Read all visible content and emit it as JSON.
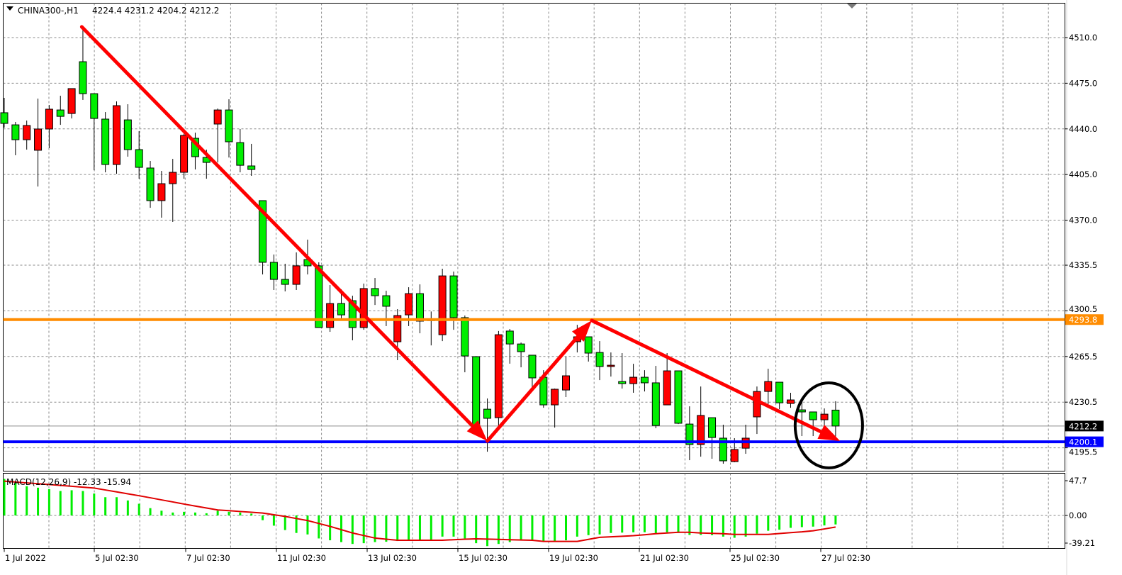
{
  "header": {
    "menu_icon": "triangle-down-icon",
    "symbol": "CHINA300-,H1",
    "ohlc": "4224.4 4231.2 4204.2 4212.2"
  },
  "chart_data": {
    "type": "candlestick",
    "symbol": "CHINA300-",
    "timeframe": "H1",
    "ylim": [
      4183,
      4529
    ],
    "grid": true,
    "y_ticks": [
      "4510.0",
      "4475.0",
      "4440.0",
      "4405.0",
      "4370.0",
      "4335.5",
      "4300.5",
      "4265.5",
      "4230.5",
      "4195.5"
    ],
    "x_ticks": [
      "1 Jul 2022",
      "5 Jul 02:30",
      "7 Jul 02:30",
      "11 Jul 02:30",
      "13 Jul 02:30",
      "15 Jul 02:30",
      "19 Jul 02:30",
      "21 Jul 02:30",
      "25 Jul 02:30",
      "27 Jul 02:30"
    ],
    "colors": {
      "bull": "#ff0000",
      "bear": "#00ee00",
      "outline": "#000000"
    },
    "candles_ohlc": [
      [
        4452.4,
        4463.8,
        4441.0,
        4444.2
      ],
      [
        4443.1,
        4445.3,
        4419.8,
        4431.7
      ],
      [
        4431.7,
        4446.4,
        4424.1,
        4442.6
      ],
      [
        4423.6,
        4463.2,
        4395.8,
        4439.9
      ],
      [
        4439.9,
        4458.3,
        4425.2,
        4455.1
      ],
      [
        4454.5,
        4465.4,
        4443.1,
        4449.6
      ],
      [
        4451.8,
        4470.9,
        4448.0,
        4470.9
      ],
      [
        4491.5,
        4518.7,
        4462.2,
        4467.0
      ],
      [
        4467.0,
        4467.0,
        4408.3,
        4448.0
      ],
      [
        4447.5,
        4452.9,
        4406.7,
        4412.7
      ],
      [
        4412.7,
        4461.1,
        4405.6,
        4457.8
      ],
      [
        4446.9,
        4458.9,
        4418.7,
        4424.1
      ],
      [
        4424.1,
        4438.2,
        4401.8,
        4410.5
      ],
      [
        4410.0,
        4415.4,
        4379.5,
        4385.0
      ],
      [
        4385.0,
        4407.8,
        4371.9,
        4398.0
      ],
      [
        4398.0,
        4417.0,
        4368.7,
        4406.7
      ],
      [
        4406.7,
        4437.1,
        4401.8,
        4435.0
      ],
      [
        4432.8,
        4437.1,
        4408.9,
        4418.7
      ],
      [
        4418.1,
        4424.1,
        4401.8,
        4414.3
      ],
      [
        4443.7,
        4455.6,
        4414.3,
        4454.5
      ],
      [
        4454.5,
        4462.7,
        4418.1,
        4430.1
      ],
      [
        4429.5,
        4439.9,
        4406.7,
        4412.1
      ],
      [
        4411.6,
        4428.5,
        4404.0,
        4408.9
      ],
      [
        4385.0,
        4385.0,
        4328.4,
        4337.7
      ],
      [
        4337.7,
        4343.7,
        4316.5,
        4324.6
      ],
      [
        4324.6,
        4336.6,
        4315.4,
        4320.8
      ],
      [
        4320.8,
        4345.3,
        4316.5,
        4335.0
      ],
      [
        4339.8,
        4355.1,
        4328.4,
        4335.0
      ],
      [
        4335.0,
        4337.7,
        4287.7,
        4287.7
      ],
      [
        4287.7,
        4320.3,
        4284.4,
        4306.1
      ],
      [
        4306.1,
        4317.0,
        4294.2,
        4297.4
      ],
      [
        4308.3,
        4312.1,
        4277.9,
        4287.7
      ],
      [
        4287.7,
        4321.4,
        4286.0,
        4317.6
      ],
      [
        4317.6,
        4325.7,
        4305.0,
        4312.1
      ],
      [
        4312.1,
        4315.9,
        4288.8,
        4304.0
      ],
      [
        4276.8,
        4301.8,
        4262.7,
        4296.9
      ],
      [
        4297.4,
        4318.6,
        4288.8,
        4313.7
      ],
      [
        4313.7,
        4320.8,
        4283.3,
        4292.6
      ],
      [
        4294.0,
        4300.0,
        4274.0,
        4293.0
      ],
      [
        4282.2,
        4332.8,
        4277.3,
        4327.3
      ],
      [
        4327.3,
        4330.6,
        4286.0,
        4295.3
      ],
      [
        4295.3,
        4296.9,
        4253.4,
        4265.9
      ],
      [
        4265.4,
        4265.4,
        4208.8,
        4212.6
      ],
      [
        4225.1,
        4233.3,
        4192.5,
        4218.1
      ],
      [
        4218.6,
        4285.0,
        4212.6,
        4282.2
      ],
      [
        4285.0,
        4286.6,
        4260.0,
        4275.1
      ],
      [
        4275.1,
        4276.2,
        4257.2,
        4269.2
      ],
      [
        4266.5,
        4266.5,
        4239.8,
        4249.1
      ],
      [
        4249.6,
        4255.0,
        4226.2,
        4228.4
      ],
      [
        4228.4,
        4240.9,
        4211.0,
        4240.4
      ],
      [
        4239.8,
        4265.4,
        4234.4,
        4250.7
      ],
      [
        4276.8,
        4289.8,
        4268.6,
        4280.6
      ],
      [
        4280.6,
        4280.6,
        4261.6,
        4268.1
      ],
      [
        4268.6,
        4277.3,
        4247.4,
        4257.8
      ],
      [
        4257.8,
        4268.6,
        4250.1,
        4258.8
      ],
      [
        4246.3,
        4268.1,
        4240.9,
        4244.7
      ],
      [
        4244.7,
        4259.9,
        4237.7,
        4249.6
      ],
      [
        4249.6,
        4255.0,
        4238.7,
        4245.3
      ],
      [
        4245.3,
        4258.3,
        4210.5,
        4212.6
      ],
      [
        4228.4,
        4268.1,
        4228.4,
        4254.5
      ],
      [
        4254.5,
        4254.5,
        4213.7,
        4214.3
      ],
      [
        4213.7,
        4227.3,
        4186.0,
        4198.0
      ],
      [
        4198.0,
        4242.5,
        4188.7,
        4220.3
      ],
      [
        4218.6,
        4218.6,
        4187.1,
        4203.4
      ],
      [
        4202.9,
        4213.2,
        4183.3,
        4185.5
      ],
      [
        4184.9,
        4202.9,
        4184.4,
        4194.2
      ],
      [
        4195.2,
        4213.2,
        4190.9,
        4202.9
      ],
      [
        4219.2,
        4242.5,
        4206.1,
        4238.7
      ],
      [
        4238.7,
        4256.1,
        4229.0,
        4246.3
      ],
      [
        4245.8,
        4245.8,
        4225.1,
        4230.0
      ],
      [
        4229.5,
        4237.7,
        4226.2,
        4232.2
      ],
      [
        4224.6,
        4230.6,
        4204.5,
        4223.0
      ],
      [
        4223.0,
        4223.0,
        4204.5,
        4217.0
      ],
      [
        4217.0,
        4225.7,
        4209.9,
        4221.3
      ],
      [
        4224.4,
        4231.2,
        4204.2,
        4212.2
      ]
    ],
    "levels": [
      {
        "label": "4293.8",
        "price": 4293.8,
        "color": "#ff8c00"
      },
      {
        "label": "4200.1",
        "price": 4200.1,
        "color": "#0000ff"
      }
    ],
    "bid": {
      "label": "4212.2",
      "price": 4212.2,
      "color": "#000000"
    },
    "trend_arrows": {
      "color": "#ff0000",
      "items": [
        {
          "from": [
            6.9,
            4518.2
          ],
          "to": [
            43.0,
            4200.7
          ]
        },
        {
          "from": [
            43.0,
            4200.7
          ],
          "to": [
            52.3,
            4293.1
          ]
        },
        {
          "from": [
            52.3,
            4293.1
          ],
          "to": [
            74.4,
            4200.7
          ]
        }
      ]
    },
    "highlight_ellipse": {
      "center": [
        73.4,
        4212.7
      ],
      "radius_bars": 3.0,
      "radius_price": 32.6,
      "color": "#000000"
    },
    "indicator": {
      "label": "MACD(12,26,9) -12.33 -15.94",
      "y_ticks": [
        "47.7",
        "0.00",
        "-39.21"
      ],
      "ylim": [
        -45,
        58
      ],
      "colors": {
        "main": "#00ee00",
        "signal": "#e00000"
      },
      "main": [
        50,
        45,
        40,
        38,
        36,
        33.5,
        34.5,
        33.5,
        30,
        25,
        25,
        20.5,
        16,
        10,
        6.5,
        4,
        5,
        4,
        3,
        6.5,
        5,
        4,
        2.5,
        -6.5,
        -14,
        -20,
        -24,
        -26,
        -31.5,
        -34,
        -36.5,
        -39,
        -38,
        -36.5,
        -36,
        -35,
        -34,
        -34,
        -34,
        -29,
        -29,
        -31.5,
        -38,
        -42,
        -39,
        -36.5,
        -33,
        -34,
        -36,
        -35,
        -34,
        -29,
        -27,
        -26,
        -24,
        -23.5,
        -23,
        -23,
        -25,
        -23,
        -24,
        -26.7,
        -26.7,
        -27,
        -29,
        -30.6,
        -29,
        -25,
        -21,
        -19.5,
        -17,
        -16,
        -15.3,
        -13.7,
        -12.33
      ],
      "signal": [
        47,
        45.8,
        44.6,
        43.4,
        42.3,
        41.1,
        39.9,
        38.7,
        37.5,
        34.9,
        32.3,
        29.6,
        27,
        24.2,
        21.3,
        18.5,
        15.6,
        12.9,
        10.2,
        7.5,
        6.5,
        5.4,
        4.4,
        3.3,
        1,
        -1.3,
        -4.2,
        -7,
        -11,
        -15,
        -19.5,
        -24,
        -27.5,
        -31,
        -32.5,
        -34,
        -34,
        -34,
        -34,
        -34,
        -33.2,
        -32.5,
        -32,
        -32.4,
        -32.8,
        -33.2,
        -33.6,
        -34,
        -35.5,
        -35.5,
        -35.5,
        -35.5,
        -32.8,
        -30,
        -29.2,
        -28.5,
        -27.7,
        -26.4,
        -25,
        -24,
        -23,
        -23,
        -24,
        -24.5,
        -25,
        -26,
        -26,
        -26,
        -26,
        -24.8,
        -23.5,
        -22.5,
        -21,
        -18.5,
        -15.94
      ]
    }
  }
}
